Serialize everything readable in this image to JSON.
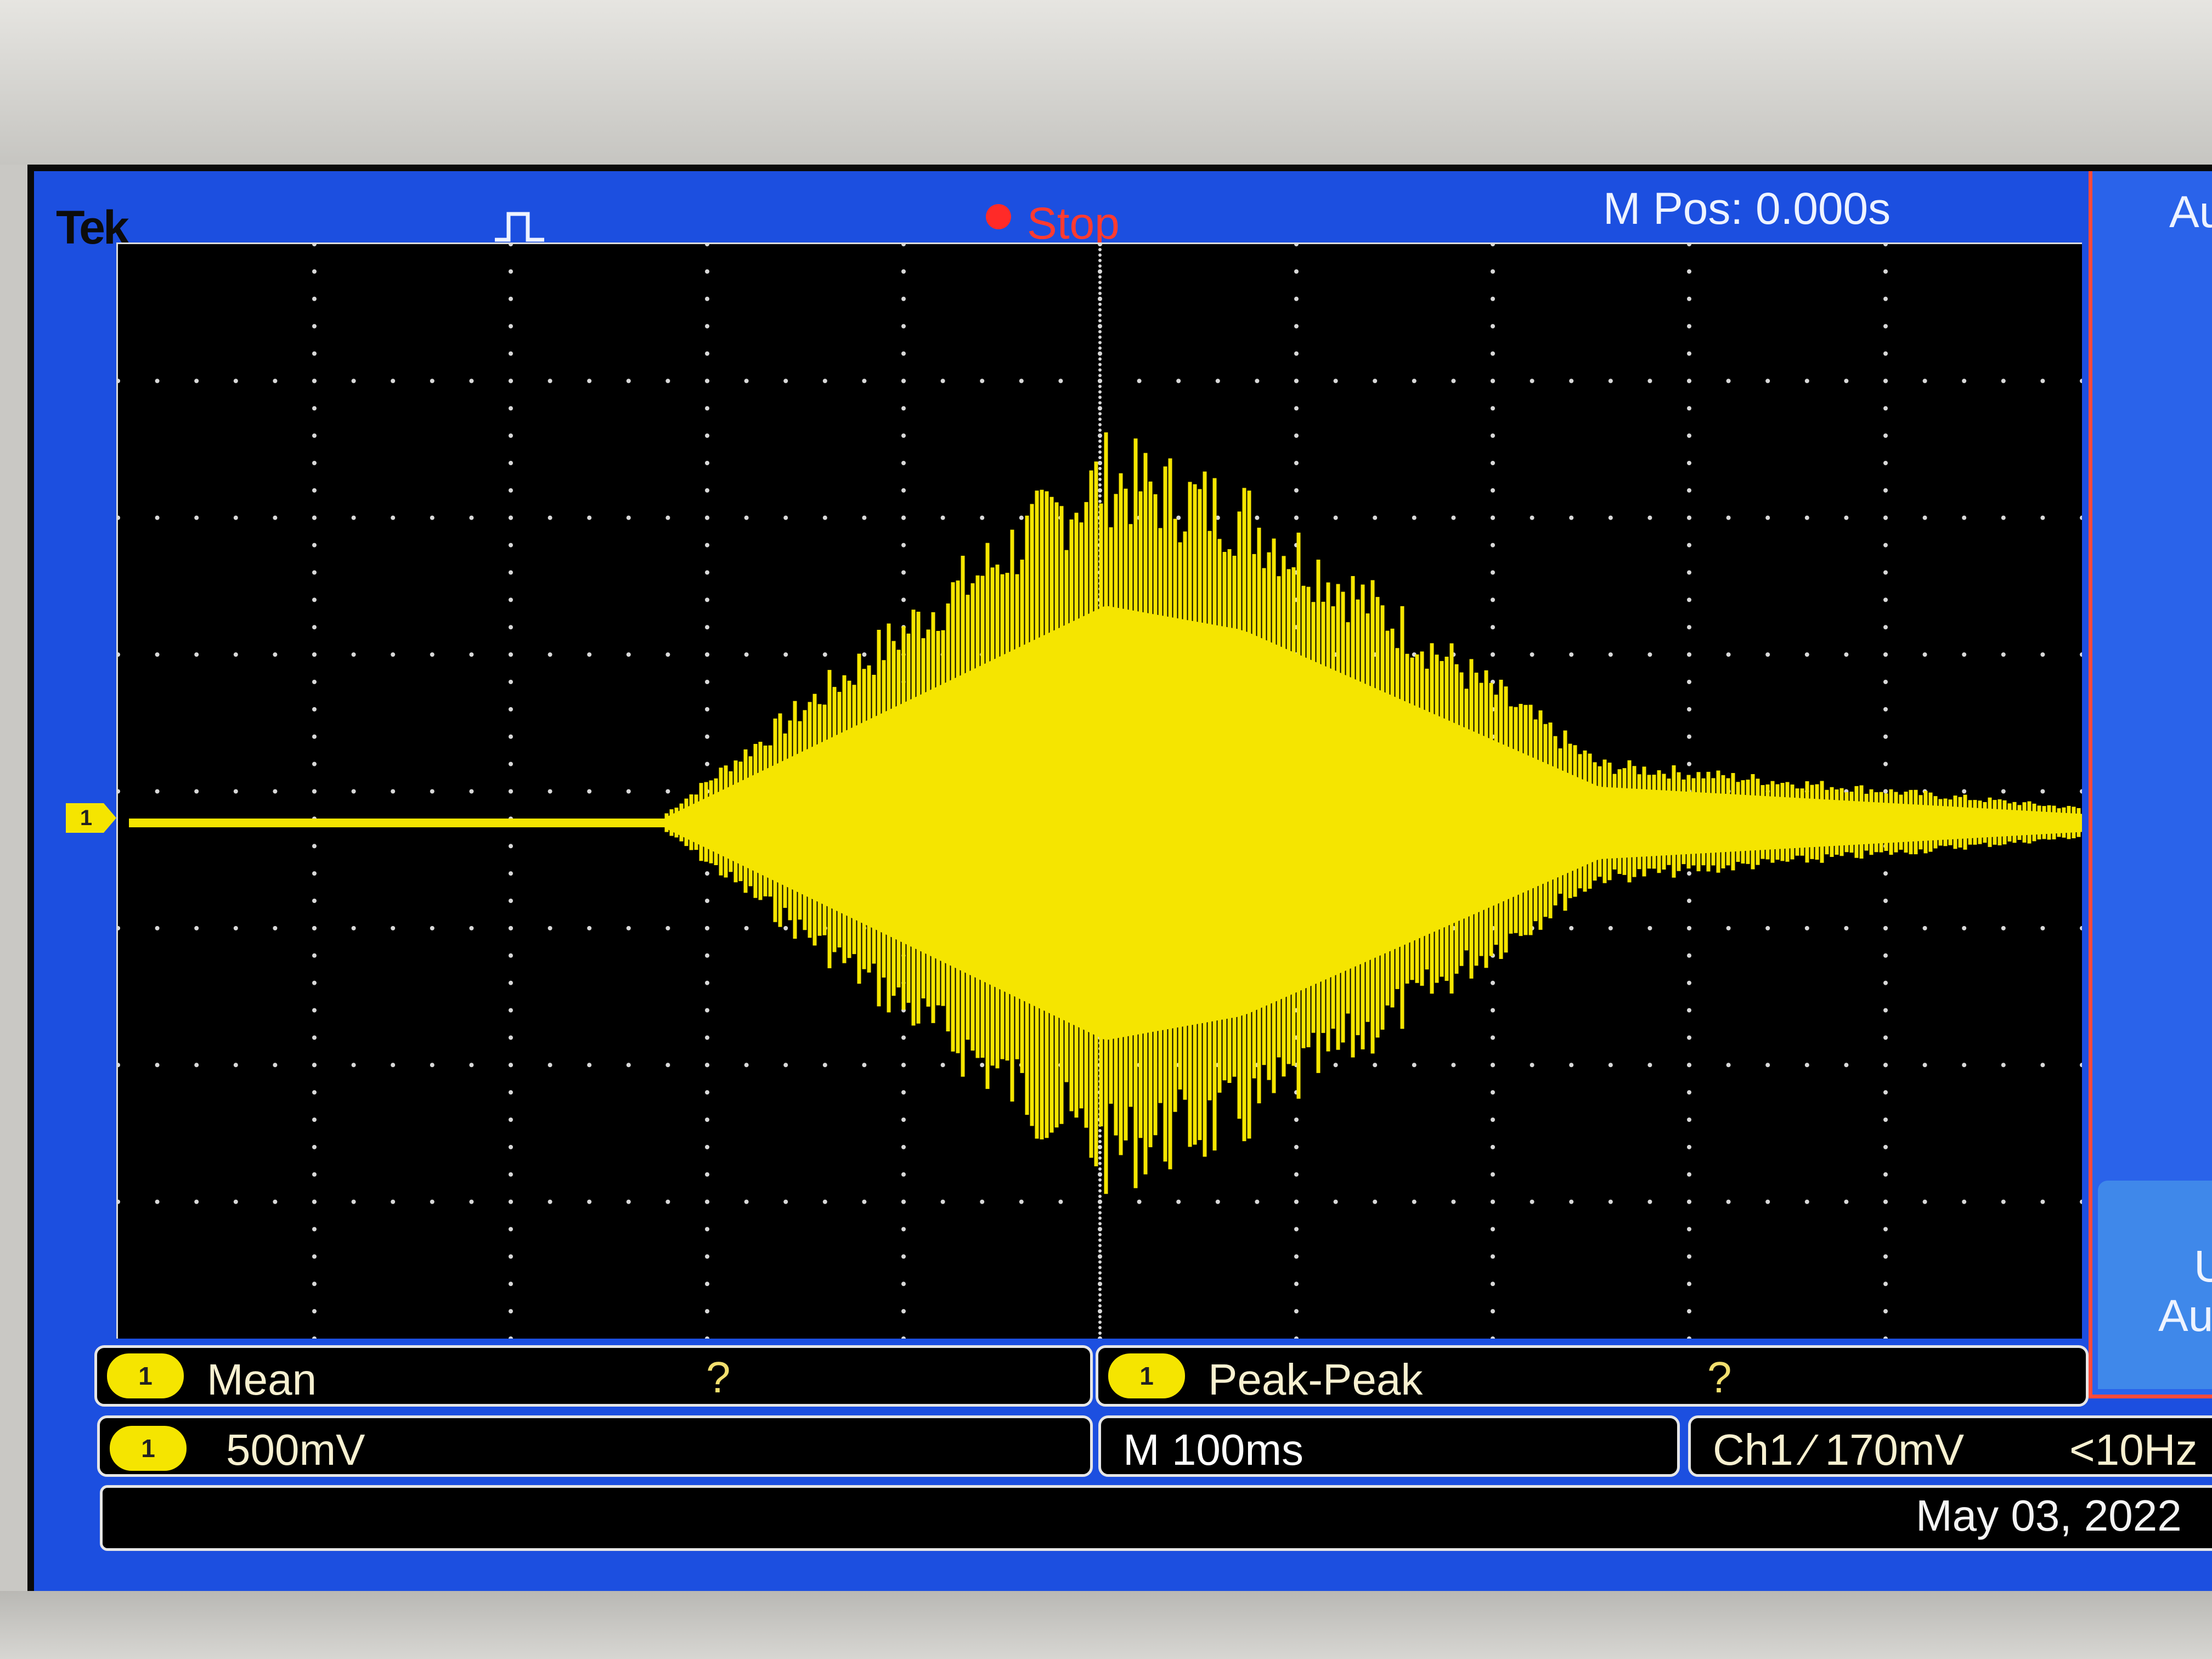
{
  "header": {
    "brand": "Tek",
    "acquisition_state": "Stop",
    "horizontal_position": "M Pos: 0.000s"
  },
  "channel": {
    "marker": "1"
  },
  "side_menu": {
    "top_label": "Au",
    "button_line1": "U",
    "button_line2": "Au"
  },
  "measurements": [
    {
      "channel": "1",
      "type": "Mean",
      "value": "?"
    },
    {
      "channel": "1",
      "type": "Peak-Peak",
      "value": "?"
    }
  ],
  "status": {
    "channel": "1",
    "vertical_scale": "500mV",
    "timebase": "M 100ms",
    "trigger": "Ch1 ⁄ 170mV",
    "trigger_freq": "<10Hz",
    "date": "May 03, 2022"
  },
  "colors": {
    "trace": "#f5e500",
    "screen_frame": "#1c4fe0",
    "graticule_bg": "#000000",
    "stop_indicator": "#ff3b30"
  },
  "icons": [
    "trigger-pulse-icon",
    "stop-indicator-icon"
  ]
}
